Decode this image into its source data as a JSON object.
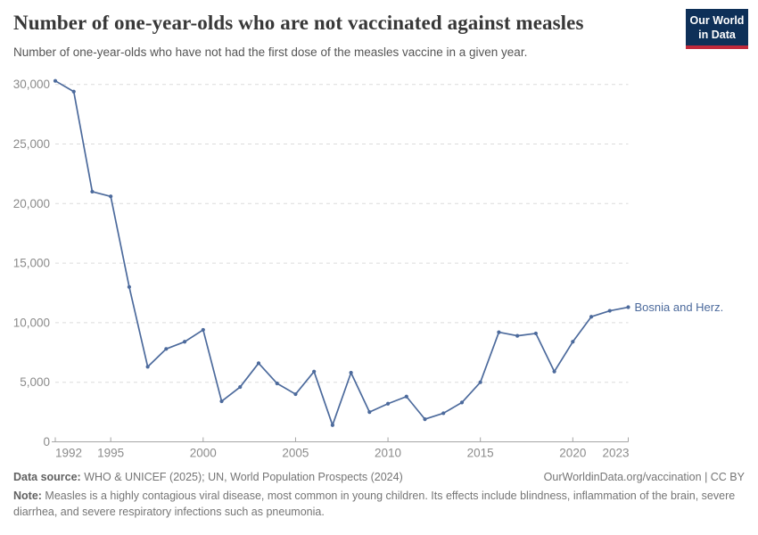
{
  "header": {
    "title": "Number of one-year-olds who are not vaccinated against measles",
    "subtitle": "Number of one-year-olds who have not had the first dose of the measles vaccine in a given year.",
    "logo": {
      "line1": "Our World",
      "line2": "in Data"
    }
  },
  "colors": {
    "series_line": "#4C6A9C",
    "grid": "#dcdcdc",
    "axis": "#a5a5a5",
    "tick_label": "#8b8b8b",
    "logo_bg": "#0e3058",
    "logo_accent": "#c0293b"
  },
  "chart_data": {
    "type": "line",
    "title": "Number of one-year-olds who are not vaccinated against measles",
    "xlabel": "",
    "ylabel": "",
    "xlim": [
      1992,
      2023
    ],
    "ylim": [
      0,
      30000
    ],
    "grid": "horizontal-dashed",
    "legend_position": "end-of-line-label",
    "x_ticks": [
      {
        "value": 1992,
        "label": "1992"
      },
      {
        "value": 1995,
        "label": "1995"
      },
      {
        "value": 2000,
        "label": "2000"
      },
      {
        "value": 2005,
        "label": "2005"
      },
      {
        "value": 2010,
        "label": "2010"
      },
      {
        "value": 2015,
        "label": "2015"
      },
      {
        "value": 2020,
        "label": "2020"
      },
      {
        "value": 2023,
        "label": "2023"
      }
    ],
    "y_ticks": [
      {
        "value": 0,
        "label": "0"
      },
      {
        "value": 5000,
        "label": "5,000"
      },
      {
        "value": 10000,
        "label": "10,000"
      },
      {
        "value": 15000,
        "label": "15,000"
      },
      {
        "value": 20000,
        "label": "20,000"
      },
      {
        "value": 25000,
        "label": "25,000"
      },
      {
        "value": 30000,
        "label": "30,000"
      }
    ],
    "series": [
      {
        "name": "Bosnia and Herz.",
        "color": "#4C6A9C",
        "x": [
          1992,
          1993,
          1994,
          1995,
          1996,
          1997,
          1998,
          1999,
          2000,
          2001,
          2002,
          2003,
          2004,
          2005,
          2006,
          2007,
          2008,
          2009,
          2010,
          2011,
          2012,
          2013,
          2014,
          2015,
          2016,
          2017,
          2018,
          2019,
          2020,
          2021,
          2022,
          2023
        ],
        "values": [
          30300,
          29400,
          21000,
          20600,
          13000,
          6300,
          7800,
          8400,
          9400,
          3400,
          4600,
          6600,
          4900,
          4000,
          5900,
          1400,
          5800,
          2500,
          3200,
          3800,
          1900,
          2400,
          3300,
          5000,
          9200,
          8900,
          9100,
          5900,
          8400,
          10500,
          11000,
          11300
        ]
      }
    ]
  },
  "footer": {
    "data_source_label": "Data source:",
    "data_source_text": " WHO & UNICEF (2025); UN, World Population Prospects (2024)",
    "link": "OurWorldinData.org/vaccination | CC BY",
    "note_label": "Note:",
    "note_text": " Measles is a highly contagious viral disease, most common in young children. Its effects include blindness, inflammation of the brain, severe diarrhea, and severe respiratory infections such as pneumonia."
  }
}
